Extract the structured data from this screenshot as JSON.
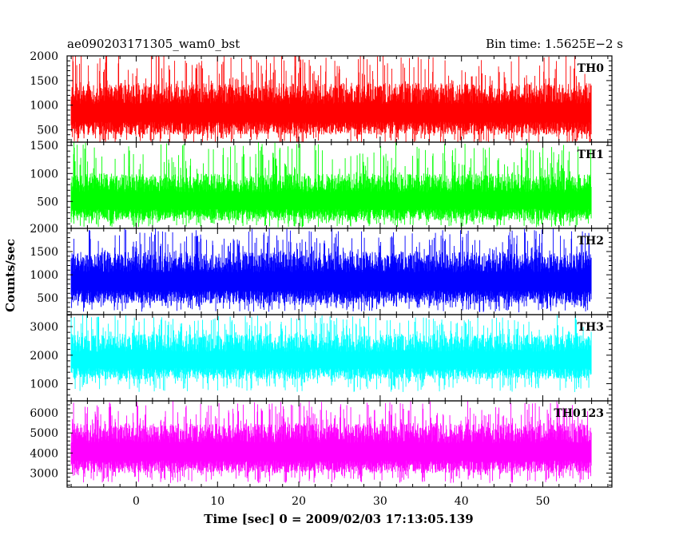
{
  "header": {
    "left_title": "ae090203171305_wam0_bst",
    "right_title": "Bin time: 1.5625E−2 s"
  },
  "chart_data": {
    "type": "line",
    "ylabel": "Counts/sec",
    "xlabel": "Time [sec] 0 = 2009/02/03 17:13:05.139",
    "xlim": [
      -8.5,
      58.5
    ],
    "data_xrange": [
      -8.0,
      56.0
    ],
    "bin_time_s": 0.015625,
    "x_ticks": [
      0,
      10,
      20,
      30,
      40,
      50
    ],
    "grid": false,
    "panels": [
      {
        "name": "TH0",
        "color": "#ff0000",
        "ylim": [
          250,
          2000
        ],
        "y_ticks": [
          500,
          1000,
          1500,
          2000
        ],
        "signal_range": [
          200,
          2050
        ],
        "core_range": [
          400,
          1450
        ]
      },
      {
        "name": "TH1",
        "color": "#00ff00",
        "ylim": [
          20,
          1560
        ],
        "y_ticks": [
          500,
          1000,
          1500
        ],
        "signal_range": [
          40,
          1560
        ],
        "core_range": [
          160,
          1000
        ]
      },
      {
        "name": "TH2",
        "color": "#0000ff",
        "ylim": [
          140,
          2000
        ],
        "y_ticks": [
          500,
          1000,
          1500,
          2000
        ],
        "signal_range": [
          190,
          2000
        ],
        "core_range": [
          380,
          1500
        ]
      },
      {
        "name": "TH3",
        "color": "#00ffff",
        "ylim": [
          400,
          3420
        ],
        "y_ticks": [
          1000,
          2000,
          3000
        ],
        "signal_range": [
          700,
          3420
        ],
        "core_range": [
          1150,
          2750
        ]
      },
      {
        "name": "TH0123",
        "color": "#ff00ff",
        "ylim": [
          2300,
          6600
        ],
        "y_ticks": [
          3000,
          4000,
          5000,
          6000
        ],
        "signal_range": [
          2500,
          6600
        ],
        "core_range": [
          3000,
          5500
        ]
      }
    ]
  }
}
